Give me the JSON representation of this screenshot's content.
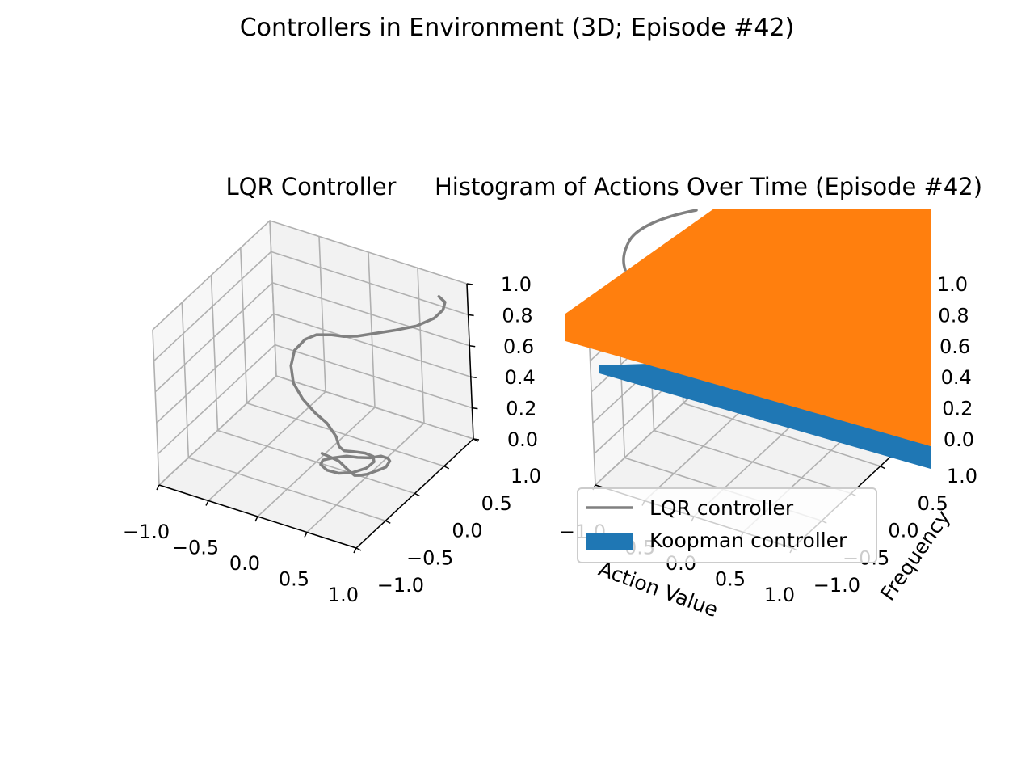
{
  "figure": {
    "suptitle": "Controllers in Environment (3D; Episode #42)"
  },
  "colors": {
    "lqr": "#808080",
    "koopman": "#1f77b4",
    "koopman_top": "#ff7f0e",
    "pane": "#f2f2f2",
    "pane_light": "#f7f7f7",
    "grid": "#b0b0b0"
  },
  "chart_data": [
    {
      "type": "line",
      "title": "LQR Controller",
      "projection": "3d",
      "xlabel": "",
      "ylabel": "",
      "zlabel": "",
      "xlim": [
        -1.0,
        1.0
      ],
      "ylim": [
        -1.0,
        1.0
      ],
      "zlim": [
        0.0,
        1.0
      ],
      "grid": true,
      "x_ticks": [
        "−1.0",
        "−0.5",
        "0.0",
        "0.5",
        "1.0"
      ],
      "y_ticks": [
        "−1.0",
        "−0.5",
        "0.0",
        "0.5",
        "1.0"
      ],
      "z_ticks": [
        "0.0",
        "0.2",
        "0.4",
        "0.6",
        "0.8",
        "1.0"
      ],
      "series": [
        {
          "name": "LQR controller",
          "x": [
            0.0,
            0.2,
            0.35,
            0.45,
            0.5,
            0.55,
            0.6,
            0.62,
            0.6,
            0.55,
            0.48,
            0.4,
            0.3,
            0.22,
            0.15,
            0.1,
            0.12,
            0.2,
            0.3,
            0.4,
            0.48,
            0.5,
            0.45,
            0.35,
            0.25,
            0.2,
            0.18,
            0.14,
            0.0,
            -0.15,
            -0.3,
            -0.42,
            -0.5,
            -0.52,
            -0.45,
            -0.35,
            -0.2,
            -0.05,
            0.1,
            0.3,
            0.5,
            0.7,
            0.85,
            0.9,
            0.88,
            0.8
          ],
          "y": [
            0.1,
            0.05,
            -0.05,
            -0.1,
            -0.1,
            -0.05,
            0.05,
            0.15,
            0.25,
            0.3,
            0.3,
            0.25,
            0.2,
            0.15,
            0.05,
            -0.05,
            -0.12,
            -0.15,
            -0.12,
            -0.05,
            0.05,
            0.15,
            0.22,
            0.25,
            0.22,
            0.15,
            0.1,
            0.12,
            0.2,
            0.25,
            0.3,
            0.35,
            0.45,
            0.55,
            0.62,
            0.65,
            0.65,
            0.62,
            0.6,
            0.6,
            0.6,
            0.62,
            0.68,
            0.75,
            0.82,
            0.85
          ],
          "z": [
            0.02,
            0.03,
            0.04,
            0.04,
            0.05,
            0.05,
            0.05,
            0.04,
            0.04,
            0.03,
            0.03,
            0.02,
            0.02,
            0.03,
            0.04,
            0.05,
            0.05,
            0.04,
            0.03,
            0.03,
            0.04,
            0.05,
            0.05,
            0.04,
            0.04,
            0.06,
            0.1,
            0.15,
            0.18,
            0.2,
            0.24,
            0.3,
            0.36,
            0.42,
            0.48,
            0.52,
            0.55,
            0.58,
            0.62,
            0.68,
            0.74,
            0.8,
            0.86,
            0.9,
            0.92,
            0.93
          ]
        }
      ]
    },
    {
      "type": "bar",
      "title": "Histogram of Actions Over Time (Episode #42)",
      "projection": "3d",
      "xlabel": "Action Value",
      "ylabel": "Frequency",
      "zlabel": "",
      "xlim": [
        -1.0,
        1.0
      ],
      "ylim": [
        -1.0,
        1.0
      ],
      "zlim": [
        0.0,
        1.0
      ],
      "grid": true,
      "x_ticks": [
        "−1.0",
        "−0.5",
        "0.0",
        "0.5",
        "1.0"
      ],
      "y_ticks": [
        "−1.0",
        "−0.5",
        "0.0",
        "0.5",
        "1.0"
      ],
      "z_ticks": [
        "0.0",
        "0.2",
        "0.4",
        "0.6",
        "0.8",
        "1.0"
      ],
      "legend_position": "lower-left",
      "series": [
        {
          "name": "LQR controller",
          "kind": "line",
          "z": 2.0
        },
        {
          "name": "Koopman controller",
          "kind": "bar",
          "z_blue": 0.47,
          "z_orange": 0.9
        }
      ]
    }
  ]
}
